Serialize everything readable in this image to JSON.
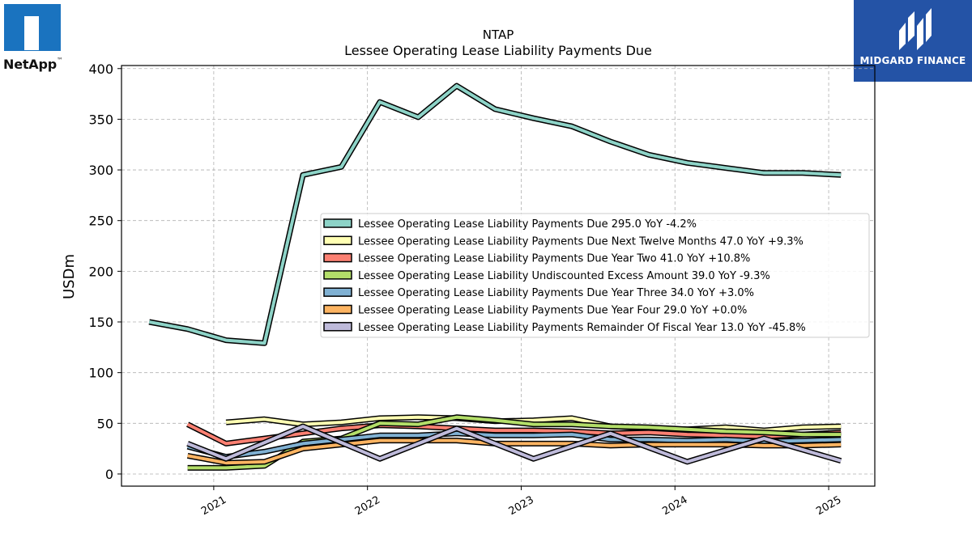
{
  "logos": {
    "left_text": "NetApp",
    "left_tm": "™",
    "right_text": "MIDGARD FINANCE"
  },
  "chart_data": {
    "type": "line",
    "title": "NTAP",
    "subtitle": "Lessee Operating Lease Liability Payments Due",
    "ylabel": "USDm",
    "xlabel": "",
    "ylim": [
      -12,
      403
    ],
    "xlim": [
      2020.4,
      2025.3
    ],
    "yticks": [
      0,
      50,
      100,
      150,
      200,
      250,
      300,
      350,
      400
    ],
    "xticks": [
      "2021",
      "2022",
      "2023",
      "2024",
      "2025"
    ],
    "grid": true,
    "legend_position": "center-right",
    "series": [
      {
        "name": "Lessee Operating Lease Liability Payments Due",
        "legend": "Lessee Operating Lease Liability Payments Due  295.0 YoY -4.2%",
        "color": "#8dd3c7",
        "x": [
          2020.58,
          2020.83,
          2021.08,
          2021.33,
          2021.58,
          2021.83,
          2022.08,
          2022.33,
          2022.58,
          2022.83,
          2023.08,
          2023.33,
          2023.58,
          2023.83,
          2024.08,
          2024.33,
          2024.58,
          2024.83,
          2025.08
        ],
        "values": [
          150,
          143,
          132,
          129,
          295,
          303,
          367,
          352,
          383,
          360,
          351,
          343,
          328,
          315,
          307,
          302,
          297,
          297,
          295
        ]
      },
      {
        "name": "Lessee Operating Lease Liability Payments Due Next Twelve Months",
        "legend": "Lessee Operating Lease Liability Payments Due Next Twelve Months  47.0 YoY +9.3%",
        "color": "#ffffb3",
        "x": [
          2021.08,
          2021.33,
          2021.58,
          2021.83,
          2022.08,
          2022.33,
          2022.58,
          2022.83,
          2023.08,
          2023.33,
          2023.58,
          2023.83,
          2024.08,
          2024.33,
          2024.58,
          2024.83,
          2025.08
        ],
        "values": [
          51,
          54,
          49,
          51,
          55,
          56,
          55,
          52,
          53,
          55,
          47,
          45,
          44,
          46,
          43,
          46,
          47
        ]
      },
      {
        "name": "Lessee Operating Lease Liability Payments Due Year Two",
        "legend": "Lessee Operating Lease Liability Payments Due Year Two  41.0 YoY +10.8%",
        "color": "#fb8072",
        "x": [
          2020.83,
          2021.08,
          2021.33,
          2021.58,
          2021.83,
          2022.08,
          2022.33,
          2022.58,
          2022.83,
          2023.08,
          2023.33,
          2023.58,
          2023.83,
          2024.08,
          2024.33,
          2024.58,
          2024.83,
          2025.08
        ],
        "values": [
          49,
          30,
          35,
          40,
          45,
          48,
          47,
          45,
          43,
          43,
          42,
          40,
          41,
          39,
          38,
          37,
          39,
          41
        ]
      },
      {
        "name": "Lessee Operating Lease Liability Undiscounted Excess Amount",
        "legend": "Lessee Operating Lease Liability Undiscounted Excess Amount  39.0 YoY -9.3%",
        "color": "#b3de69",
        "x": [
          2020.83,
          2021.08,
          2021.33,
          2021.58,
          2021.83,
          2022.08,
          2022.33,
          2022.58,
          2022.83,
          2023.08,
          2023.33,
          2023.58,
          2023.83,
          2024.08,
          2024.33,
          2024.58,
          2024.83,
          2025.08
        ],
        "values": [
          6,
          6,
          8,
          32,
          35,
          50,
          49,
          56,
          53,
          49,
          49,
          47,
          46,
          44,
          42,
          41,
          39,
          39
        ]
      },
      {
        "name": "Lessee Operating Lease Liability Payments Due Year Three",
        "legend": "Lessee Operating Lease Liability Payments Due Year Three  34.0 YoY +3.0%",
        "color": "#80b1d3",
        "x": [
          2020.83,
          2021.08,
          2021.33,
          2021.58,
          2021.83,
          2022.08,
          2022.33,
          2022.58,
          2022.83,
          2023.08,
          2023.33,
          2023.58,
          2023.83,
          2024.08,
          2024.33,
          2024.58,
          2024.83,
          2025.08
        ],
        "values": [
          27,
          17,
          22,
          30,
          34,
          38,
          38,
          40,
          38,
          38,
          39,
          34,
          34,
          33,
          34,
          32,
          33,
          34
        ]
      },
      {
        "name": "Lessee Operating Lease Liability Payments Due Year Four",
        "legend": "Lessee Operating Lease Liability Payments Due Year Four  29.0 YoY +0.0%",
        "color": "#fdb462",
        "x": [
          2020.83,
          2021.08,
          2021.33,
          2021.58,
          2021.83,
          2022.08,
          2022.33,
          2022.58,
          2022.83,
          2023.08,
          2023.33,
          2023.58,
          2023.83,
          2024.08,
          2024.33,
          2024.58,
          2024.83,
          2025.08
        ],
        "values": [
          18,
          11,
          12,
          25,
          29,
          33,
          33,
          33,
          30,
          30,
          30,
          28,
          29,
          29,
          29,
          28,
          28,
          29
        ]
      },
      {
        "name": "Lessee Operating Lease Liability Payments Remainder Of Fiscal Year",
        "legend": "Lessee Operating Lease Liability Payments Remainder Of Fiscal Year  13.0 YoY -45.8%",
        "color": "#bebada",
        "x": [
          2020.83,
          2021.08,
          2021.58,
          2022.08,
          2022.58,
          2023.08,
          2023.58,
          2024.08,
          2024.58,
          2025.08
        ],
        "values": [
          30,
          15,
          47,
          15,
          45,
          15,
          40,
          12,
          35,
          13
        ]
      }
    ]
  }
}
